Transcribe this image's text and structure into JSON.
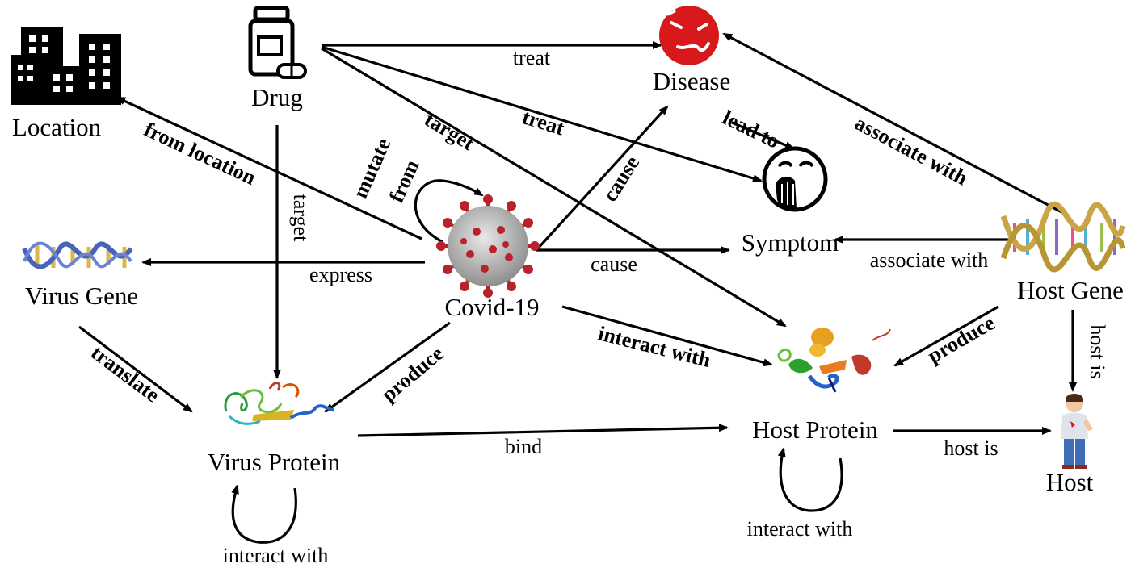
{
  "nodes": {
    "location": "Location",
    "drug": "Drug",
    "disease": "Disease",
    "symptom": "Symptom",
    "virus_gene": "Virus Gene",
    "covid": "Covid-19",
    "host_gene": "Host Gene",
    "virus_protein": "Virus Protein",
    "host_protein": "Host Protein",
    "host": "Host"
  },
  "edges": {
    "drug_treat_disease": "treat",
    "drug_treat_symptom": "treat",
    "drug_target_host_protein": "target",
    "drug_target_virus_protein": "target",
    "covid_from_location": "from location",
    "covid_mutate_from_1": "mutate",
    "covid_mutate_from_2": "from",
    "covid_cause_disease": "cause",
    "covid_cause_symptom": "cause",
    "covid_express_gene": "express",
    "covid_interact_host_protein": "interact with",
    "covid_produce_virus_protein": "produce",
    "disease_lead_to_symptom": "lead to",
    "host_gene_associate_disease": "associate with",
    "host_gene_associate_symptom": "associate with",
    "host_gene_produce_protein": "produce",
    "host_gene_host_is": "host is",
    "virus_gene_translate": "translate",
    "virus_protein_bind": "bind",
    "virus_protein_self": "interact with",
    "host_protein_self": "interact with",
    "host_protein_host_is": "host is"
  },
  "colors": {
    "edge": "#000000",
    "disease_icon": "#d7191c",
    "virus_spike": "#b8232a",
    "virus_body": "#b9b9b9",
    "gene_helix_virus": "#4a62b8",
    "gene_rung_virus": "#d9b84a"
  },
  "icons": {
    "location": "buildings-icon",
    "drug": "pill-bottle-icon",
    "disease": "sick-face-icon",
    "symptom": "coughing-face-icon",
    "covid": "coronavirus-icon",
    "virus_gene": "dna-helix-icon",
    "host_gene": "dna-double-helix-icon",
    "virus_protein": "protein-ribbon-icon",
    "host_protein": "protein-ribbon-icon",
    "host": "person-icon"
  }
}
